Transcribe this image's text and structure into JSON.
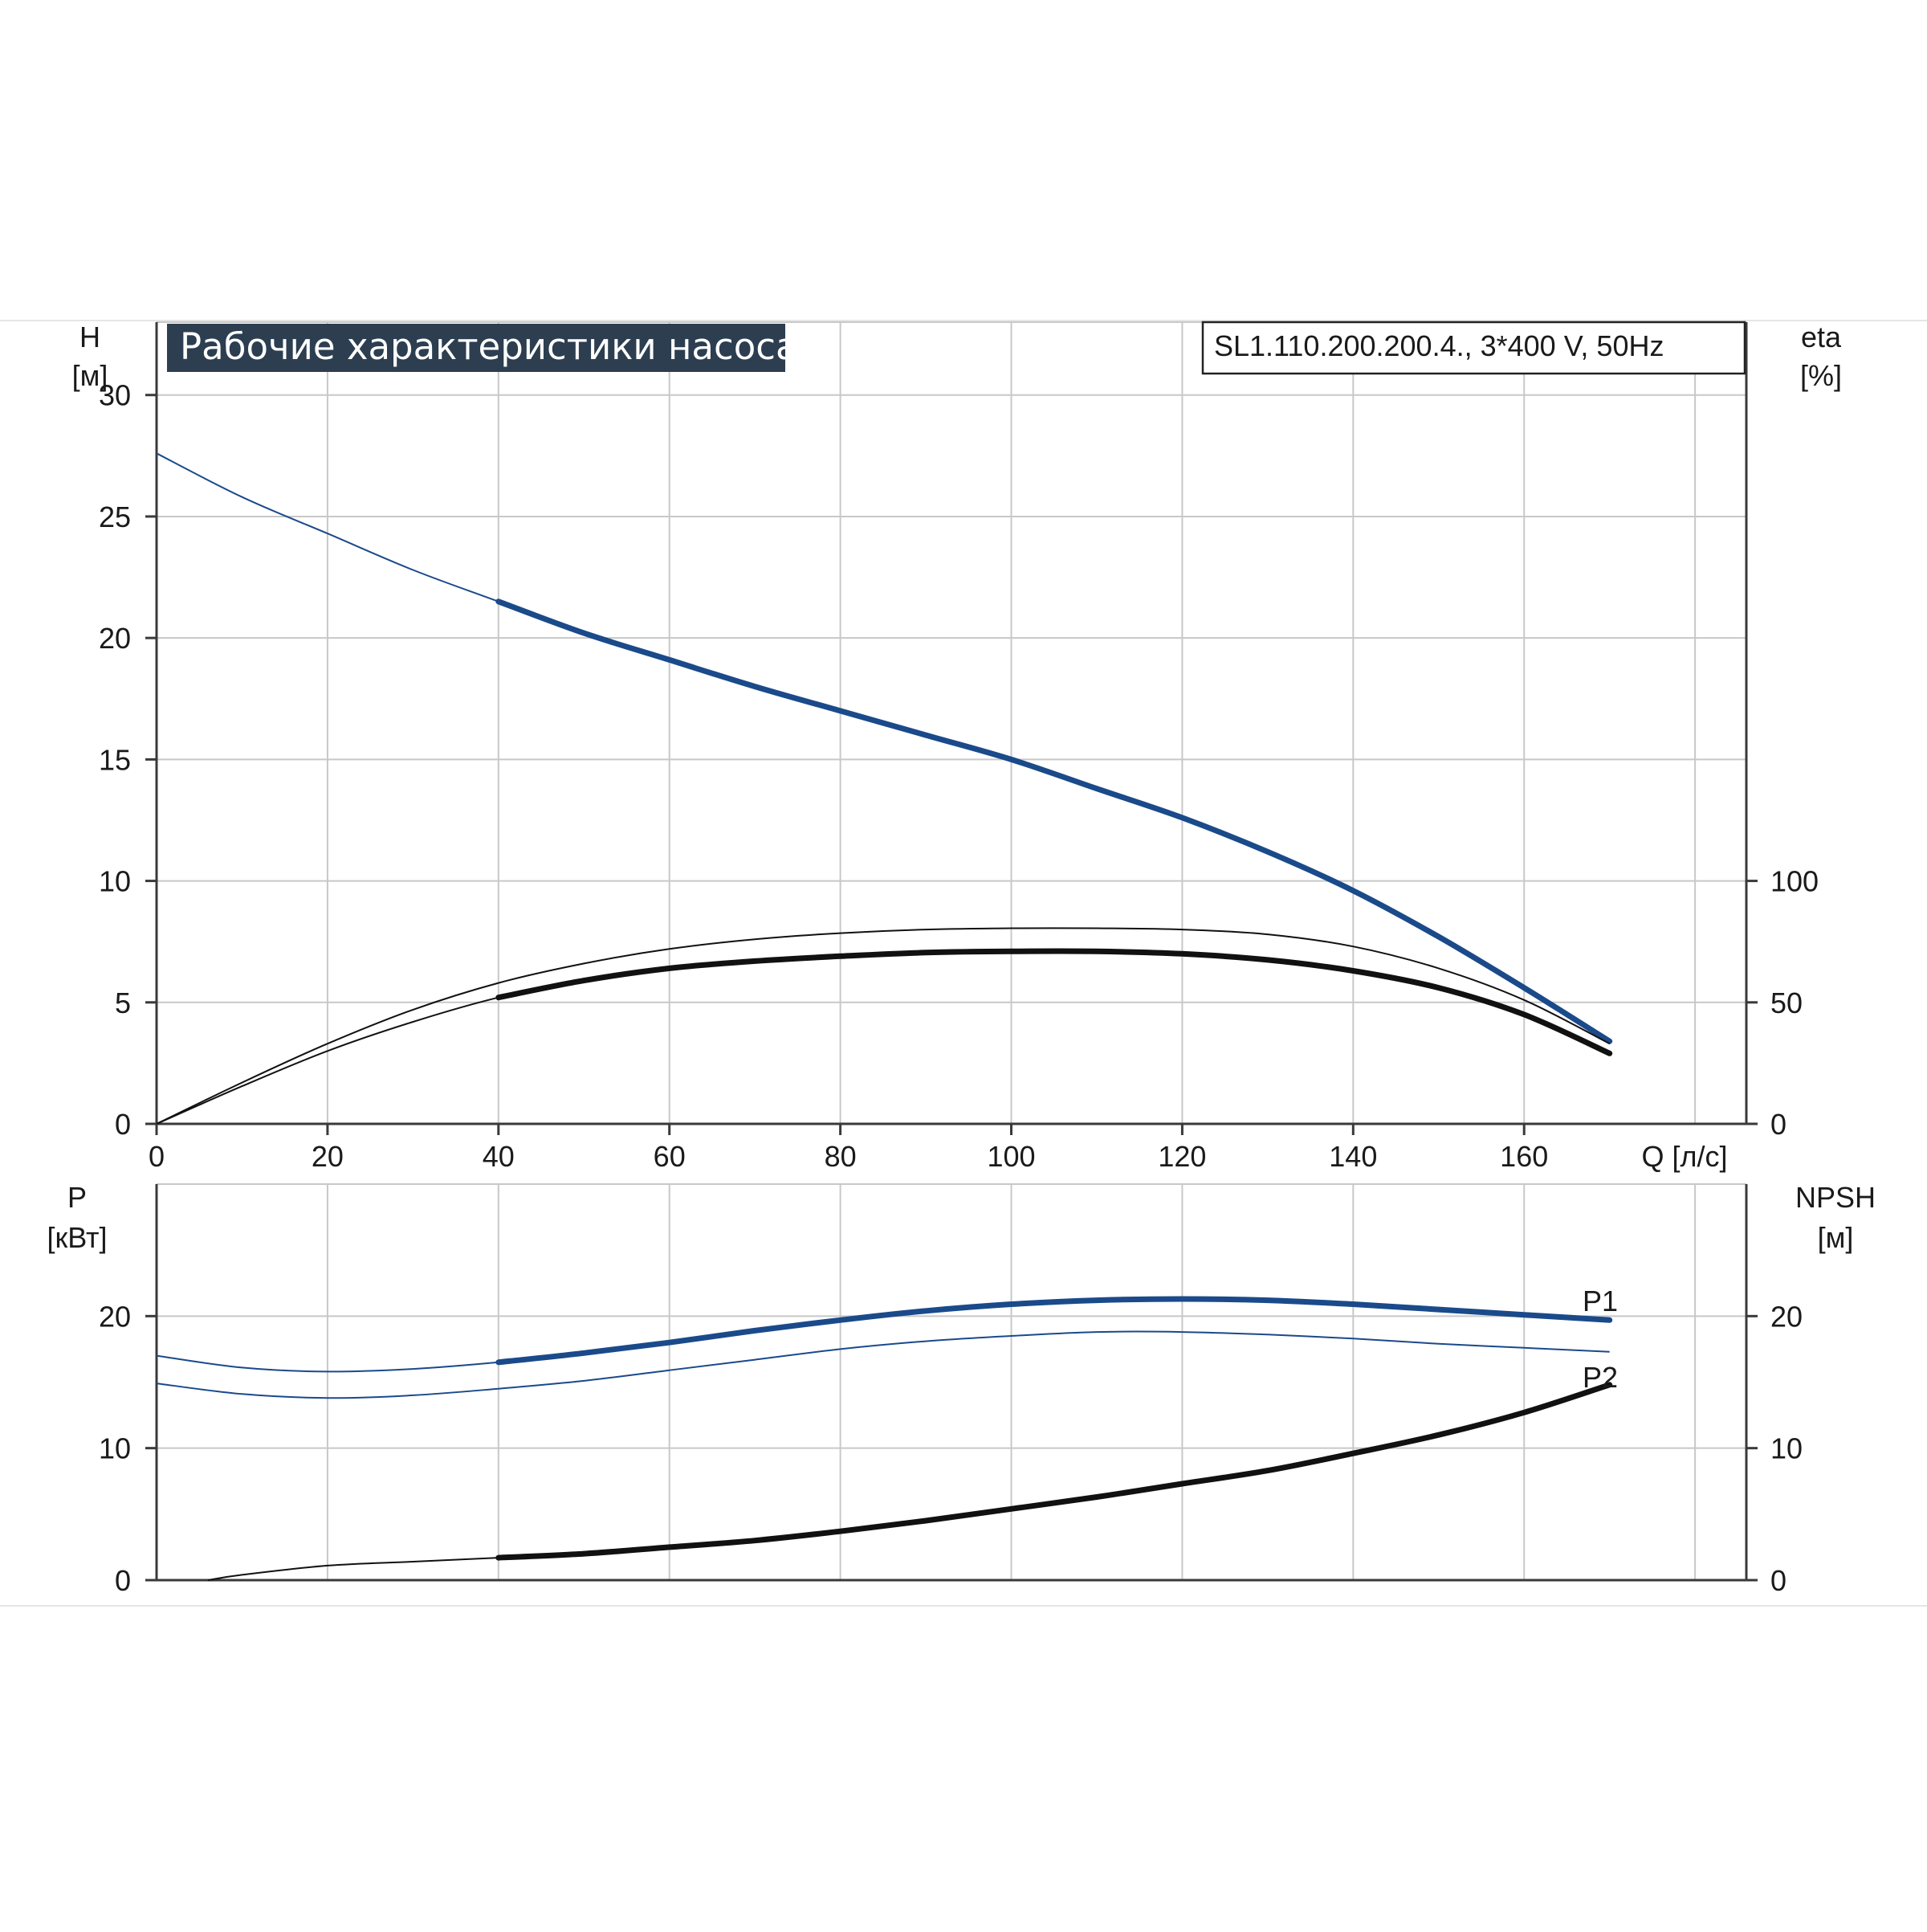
{
  "colors": {
    "background": "#ffffff",
    "frame": "#3a3a3a",
    "grid": "#c8c8c8",
    "text": "#1a1a1a",
    "title_bg": "#2c3e50",
    "title_text": "#ffffff",
    "blue_curve": "#1a4a8a",
    "black_curve": "#111111"
  },
  "header": {
    "title": "Рабочие характеристики насоса",
    "model": "SL1.110.200.200.4., 3*400 V, 50Hz"
  },
  "chart_data": [
    {
      "type": "line",
      "panel": "top",
      "x_label": "Q [л/с]",
      "y_left_label": "H",
      "y_left_unit": "[м]",
      "y_right_label": "eta",
      "y_right_unit": "[%]",
      "xlim": [
        0,
        186
      ],
      "ylim_left": [
        0,
        33
      ],
      "ylim_right": [
        0,
        330
      ],
      "x_ticks": [
        "0",
        "20",
        "40",
        "60",
        "80",
        "100",
        "120",
        "140",
        "160"
      ],
      "x_tick_values": [
        0,
        20,
        40,
        60,
        80,
        100,
        120,
        140,
        160
      ],
      "x_grid": [
        0,
        20,
        40,
        60,
        80,
        100,
        120,
        140,
        160,
        180
      ],
      "y_left_ticks": [
        0,
        5,
        10,
        15,
        20,
        25,
        30
      ],
      "y_right_ticks": [
        0,
        50,
        100
      ],
      "grid": true,
      "series": [
        {
          "axis": "left",
          "style": "blue",
          "x": [
            0,
            10,
            20,
            30,
            40,
            50,
            60,
            70,
            80,
            90,
            100,
            110,
            120,
            130,
            140,
            150,
            160,
            170
          ],
          "y": [
            27.6,
            25.8,
            24.3,
            22.8,
            21.5,
            20.2,
            19.1,
            18.0,
            17.0,
            16.0,
            15.0,
            13.8,
            12.6,
            11.2,
            9.6,
            7.7,
            5.6,
            3.4
          ],
          "thick_from": 40
        },
        {
          "axis": "right",
          "style": "black",
          "x": [
            0,
            10,
            20,
            30,
            40,
            50,
            60,
            70,
            80,
            90,
            100,
            110,
            120,
            130,
            140,
            150,
            160,
            170
          ],
          "y": [
            0,
            17,
            33,
            47,
            58,
            66,
            72,
            76,
            78.5,
            80,
            80.5,
            80.5,
            80,
            78,
            73,
            64,
            51,
            33
          ],
          "thick_from": 999
        },
        {
          "axis": "right",
          "style": "black",
          "x": [
            0,
            10,
            20,
            30,
            40,
            50,
            60,
            70,
            80,
            90,
            100,
            110,
            120,
            130,
            140,
            150,
            160,
            170
          ],
          "y": [
            0,
            15.5,
            30,
            42,
            52,
            59,
            64,
            67,
            69,
            70.5,
            71,
            71,
            70,
            67.5,
            63,
            56,
            45,
            29
          ],
          "thick_from": 40
        }
      ]
    },
    {
      "type": "line",
      "panel": "bottom",
      "y_left_label": "P",
      "y_left_unit": "[кВт]",
      "y_right_label": "NPSH",
      "y_right_unit": "[м]",
      "xlim": [
        0,
        186
      ],
      "ylim_left": [
        0,
        30
      ],
      "ylim_right": [
        0,
        30
      ],
      "x_grid": [
        0,
        20,
        40,
        60,
        80,
        100,
        120,
        140,
        160,
        180
      ],
      "y_left_ticks": [
        0,
        10,
        20
      ],
      "y_right_ticks": [
        0,
        10,
        20
      ],
      "grid": true,
      "series": [
        {
          "name": "P1",
          "axis": "left",
          "style": "blue",
          "x": [
            0,
            10,
            20,
            30,
            40,
            50,
            60,
            70,
            80,
            90,
            100,
            110,
            120,
            130,
            140,
            150,
            160,
            170
          ],
          "y": [
            17.0,
            16.1,
            15.8,
            16.0,
            16.5,
            17.2,
            18.0,
            18.9,
            19.7,
            20.4,
            20.9,
            21.2,
            21.3,
            21.2,
            20.9,
            20.5,
            20.1,
            19.7
          ],
          "thick_from": 40
        },
        {
          "name": "P2",
          "axis": "left",
          "style": "blue",
          "x": [
            0,
            10,
            20,
            30,
            40,
            50,
            60,
            70,
            80,
            90,
            100,
            110,
            120,
            130,
            140,
            150,
            160,
            170
          ],
          "y": [
            14.9,
            14.1,
            13.8,
            14.0,
            14.5,
            15.1,
            15.9,
            16.7,
            17.5,
            18.1,
            18.5,
            18.8,
            18.8,
            18.6,
            18.3,
            17.9,
            17.6,
            17.3
          ],
          "thick_from": 999
        },
        {
          "axis": "right",
          "style": "black",
          "x": [
            6,
            10,
            20,
            30,
            40,
            50,
            60,
            70,
            80,
            90,
            100,
            110,
            120,
            130,
            140,
            150,
            160,
            170
          ],
          "y": [
            0,
            0.4,
            1.1,
            1.4,
            1.7,
            2.0,
            2.5,
            3.0,
            3.7,
            4.5,
            5.4,
            6.3,
            7.3,
            8.3,
            9.6,
            11.0,
            12.7,
            14.8
          ],
          "thick_from": 40
        }
      ]
    }
  ]
}
